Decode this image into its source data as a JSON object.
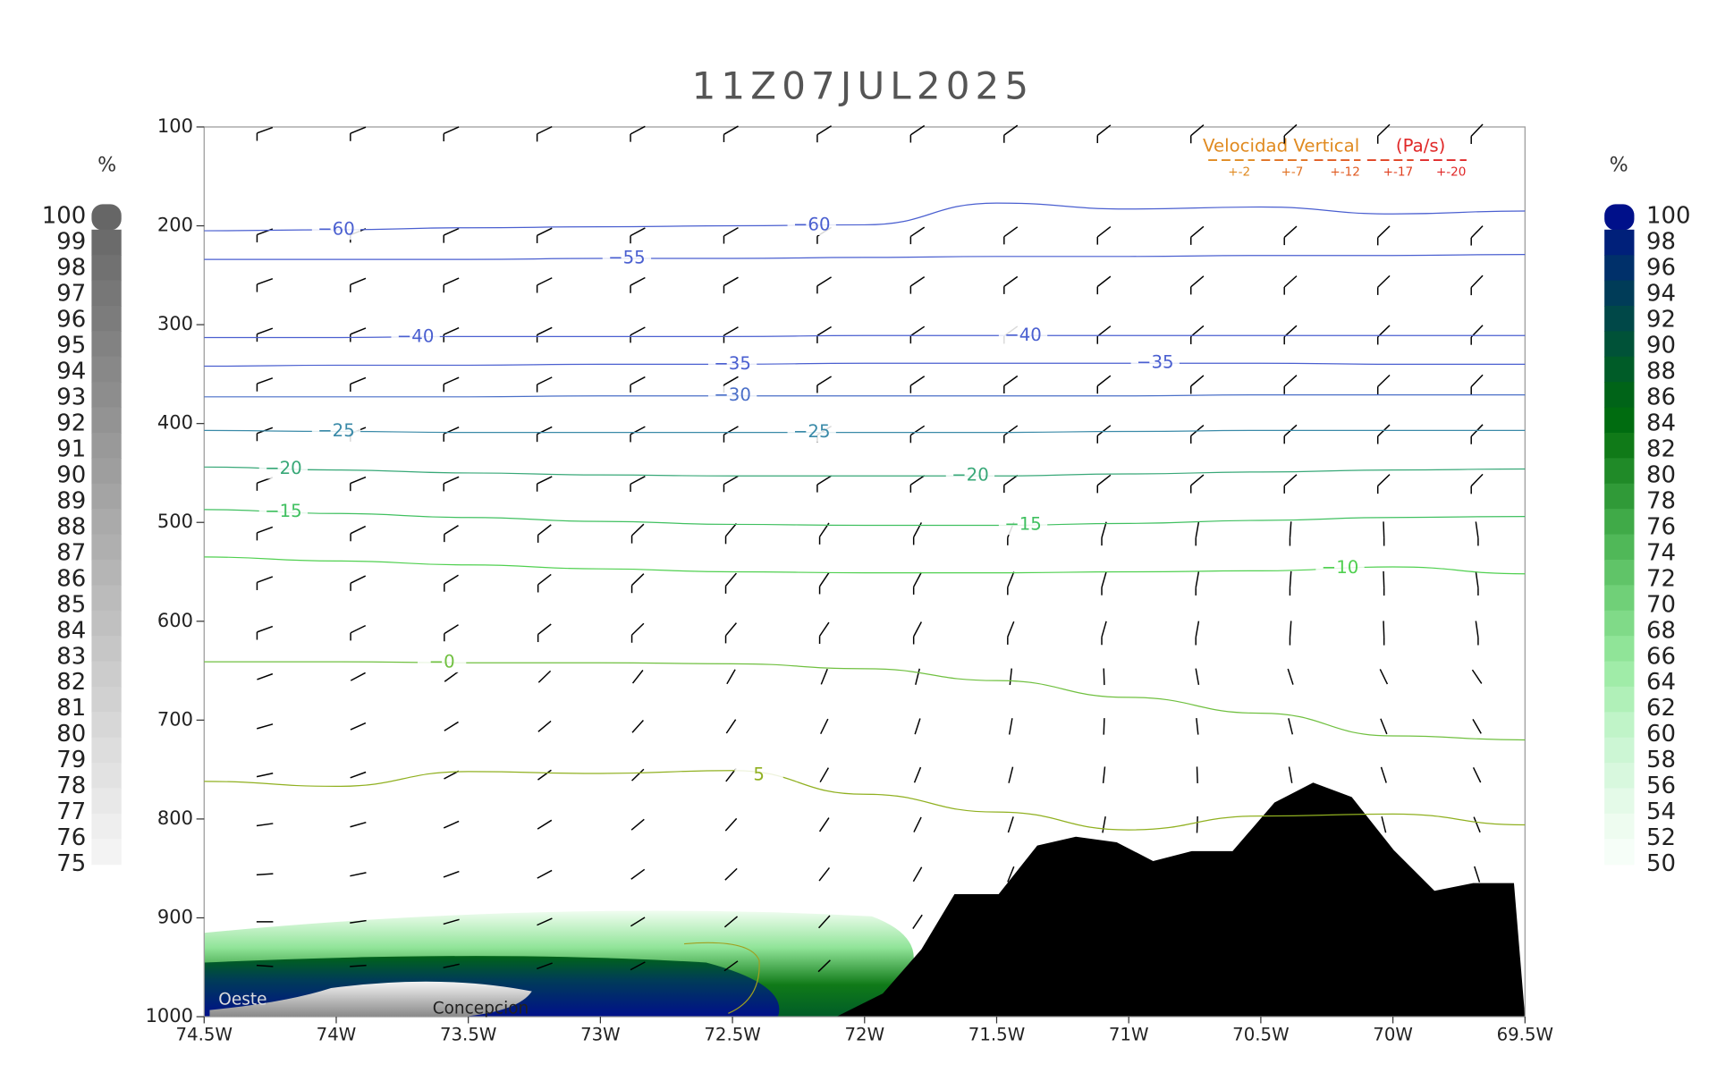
{
  "chart_data": {
    "type": "cross-section",
    "title": "11Z07JUL2025",
    "x": [
      -74.5,
      -74,
      -73.5,
      -73,
      -72.5,
      -72,
      -71.5,
      -71,
      -70.5,
      -70,
      -69.5
    ],
    "xlim": [
      -74.5,
      -69.5
    ],
    "xticks": [
      {
        "value": -74.5,
        "label": "74.5W"
      },
      {
        "value": -74,
        "label": "74W"
      },
      {
        "value": -73.5,
        "label": "73.5W"
      },
      {
        "value": -73,
        "label": "73W"
      },
      {
        "value": -72.5,
        "label": "72.5W"
      },
      {
        "value": -72,
        "label": "72W"
      },
      {
        "value": -71.5,
        "label": "71.5W"
      },
      {
        "value": -71,
        "label": "71W"
      },
      {
        "value": -70.5,
        "label": "70.5W"
      },
      {
        "value": -70,
        "label": "70W"
      },
      {
        "value": -69.5,
        "label": "69.5W"
      }
    ],
    "ylim": [
      100,
      1000
    ],
    "yticks": [
      100,
      200,
      300,
      400,
      500,
      600,
      700,
      800,
      900,
      1000
    ],
    "inverted_y": true,
    "contours": [
      {
        "label": "−60",
        "color": "#4a5fd0",
        "values": [
          205,
          204,
          202,
          201,
          200,
          199,
          177,
          183,
          181,
          188,
          185
        ]
      },
      {
        "label": "−55",
        "color": "#4a5fd0",
        "values": [
          234,
          234,
          234,
          233,
          233,
          232,
          231,
          231,
          230,
          230,
          229
        ]
      },
      {
        "label": "−40",
        "color": "#4a5fd0",
        "values": [
          313,
          313,
          312,
          312,
          312,
          311,
          311,
          311,
          311,
          311,
          311
        ]
      },
      {
        "label": "−35",
        "color": "#4a5fd0",
        "values": [
          342,
          341,
          341,
          340,
          340,
          339,
          339,
          339,
          339,
          340,
          340
        ]
      },
      {
        "label": "−30",
        "color": "#4a6fc8",
        "values": [
          373,
          373,
          373,
          372,
          372,
          372,
          372,
          372,
          371,
          371,
          371
        ]
      },
      {
        "label": "−25",
        "color": "#3a8aa8",
        "values": [
          407,
          408,
          409,
          409,
          409,
          409,
          409,
          408,
          407,
          407,
          407
        ]
      },
      {
        "label": "−20",
        "color": "#38a878",
        "values": [
          444,
          447,
          450,
          452,
          453,
          453,
          453,
          451,
          449,
          447,
          446
        ]
      },
      {
        "label": "−15",
        "color": "#40c060",
        "values": [
          487,
          491,
          495,
          499,
          502,
          503,
          503,
          501,
          498,
          495,
          494
        ]
      },
      {
        "label": "−10",
        "color": "#50d050",
        "values": [
          535,
          539,
          543,
          547,
          550,
          551,
          551,
          550,
          549,
          545,
          552
        ]
      },
      {
        "label": "−0",
        "color": "#70c040",
        "values": [
          641,
          641,
          642,
          642,
          643,
          648,
          660,
          677,
          693,
          716,
          720
        ]
      },
      {
        "label": "5",
        "color": "#90b020",
        "values": [
          762,
          767,
          752,
          754,
          751,
          775,
          793,
          811,
          797,
          795,
          806
        ]
      }
    ],
    "legend": {
      "title": "Velocidad Vertical",
      "unit": "(Pa/s)",
      "items": [
        {
          "label": "+-2",
          "color": "#e08a20"
        },
        {
          "label": "+-7",
          "color": "#e07020"
        },
        {
          "label": "+-12",
          "color": "#e05a20"
        },
        {
          "label": "+-17",
          "color": "#e04020"
        },
        {
          "label": "+-20",
          "color": "#e02828"
        }
      ]
    },
    "places": [
      "Oeste",
      "Concepcion"
    ],
    "colorbar_left": {
      "unit": "%",
      "labels": [
        100,
        99,
        98,
        97,
        96,
        95,
        94,
        93,
        92,
        91,
        90,
        89,
        88,
        87,
        86,
        85,
        84,
        83,
        82,
        81,
        80,
        79,
        78,
        77,
        76,
        75
      ],
      "colors": [
        "#666666",
        "#6b6b6b",
        "#717171",
        "#777777",
        "#7c7c7c",
        "#828282",
        "#888888",
        "#8d8d8d",
        "#939393",
        "#999999",
        "#9e9e9e",
        "#a4a4a4",
        "#aaaaaa",
        "#afafaf",
        "#b5b5b5",
        "#bbbbbb",
        "#c0c0c0",
        "#c6c6c6",
        "#cccccc",
        "#d1d1d1",
        "#d7d7d7",
        "#dddddd",
        "#e2e2e2",
        "#e8e8e8",
        "#eeeeee",
        "#f3f3f3"
      ]
    },
    "colorbar_right": {
      "unit": "%",
      "labels": [
        100,
        98,
        96,
        94,
        92,
        90,
        88,
        86,
        84,
        82,
        80,
        78,
        76,
        74,
        72,
        70,
        68,
        66,
        64,
        62,
        60,
        58,
        56,
        54,
        52,
        50
      ],
      "colors": [
        "#00108a",
        "#00207a",
        "#00306a",
        "#003c58",
        "#004848",
        "#005238",
        "#005c28",
        "#006418",
        "#006c10",
        "#107a18",
        "#208a28",
        "#309a38",
        "#40aa48",
        "#50b858",
        "#60c468",
        "#70d078",
        "#80da88",
        "#90e498",
        "#a0eca8",
        "#b0f0b8",
        "#c0f4c8",
        "#ccf6d4",
        "#d8f8de",
        "#e4fae8",
        "#eefcf0",
        "#f6fef8"
      ]
    }
  }
}
